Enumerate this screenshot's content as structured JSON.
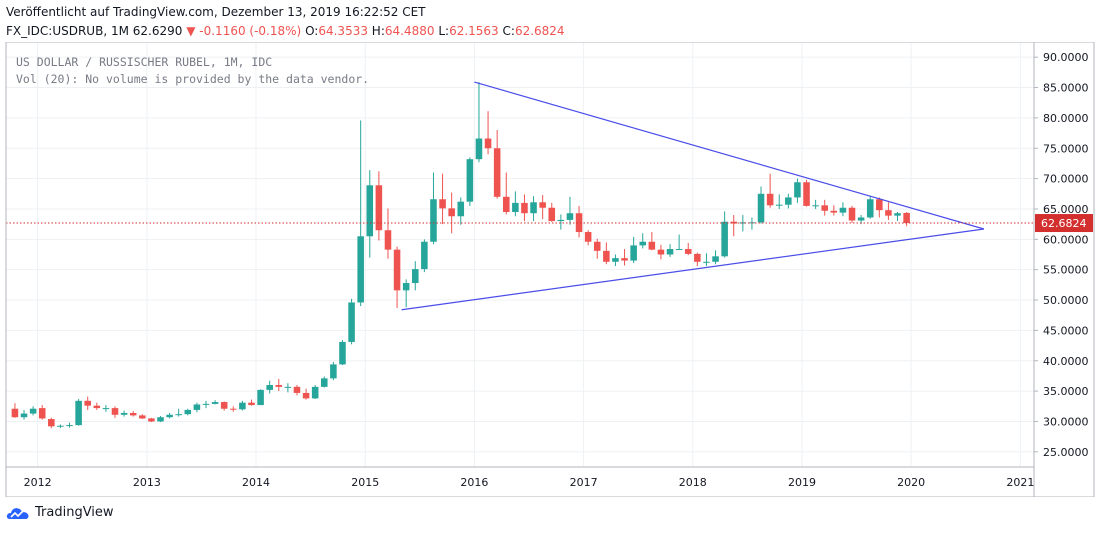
{
  "header": {
    "published": "Veröffentlicht auf TradingView.com, Dezember 13, 2019 16:22:52 CET",
    "symbol": "FX_IDC:USDRUB, 1M",
    "last": "62.6290",
    "arrow": "▼",
    "change": "-0.1160 (-0.18%)",
    "o_label": "O:",
    "o_value": "64.3533",
    "h_label": "H:",
    "h_value": "64.4880",
    "l_label": "L:",
    "l_value": "62.1563",
    "c_label": "C:",
    "c_value": "62.6824"
  },
  "legend": {
    "title": "US DOLLAR / RUSSISCHER RUBEL, 1M, IDC",
    "volume": "Vol (20): No volume is provided by the data vendor."
  },
  "footer": {
    "brand": "TradingView"
  },
  "colors": {
    "up": "#26a69a",
    "down": "#ef5350",
    "trendline": "#4a4de8",
    "price_line": "#d32f2f",
    "grid": "#eef1f4",
    "axis_text": "#131722"
  },
  "chart_data": {
    "type": "candlestick",
    "title": "US DOLLAR / RUSSISCHER RUBEL, 1M, IDC",
    "ylim": [
      22.5,
      92.5
    ],
    "xlim": [
      2011.71,
      2021.125
    ],
    "y_ticks": [
      "90.0000",
      "85.0000",
      "80.0000",
      "75.0000",
      "70.0000",
      "65.0000",
      "60.0000",
      "55.0000",
      "50.0000",
      "45.0000",
      "40.0000",
      "35.0000",
      "30.0000",
      "25.0000"
    ],
    "x_ticks": [
      "2012",
      "2013",
      "2014",
      "2015",
      "2016",
      "2017",
      "2018",
      "2019",
      "2020",
      "2021"
    ],
    "last_price_label": "62.6824",
    "last_price": 62.6824,
    "grid": true,
    "candles": [
      {
        "t": "2011-10",
        "o": 32.1,
        "h": 33.0,
        "l": 30.6,
        "c": 30.7
      },
      {
        "t": "2011-11",
        "o": 30.7,
        "h": 31.9,
        "l": 30.3,
        "c": 31.3
      },
      {
        "t": "2011-12",
        "o": 31.3,
        "h": 32.5,
        "l": 31.0,
        "c": 32.1
      },
      {
        "t": "2012-01",
        "o": 32.2,
        "h": 32.7,
        "l": 30.3,
        "c": 30.5
      },
      {
        "t": "2012-02",
        "o": 30.4,
        "h": 30.6,
        "l": 28.9,
        "c": 29.2
      },
      {
        "t": "2012-03",
        "o": 29.2,
        "h": 29.5,
        "l": 28.9,
        "c": 29.3
      },
      {
        "t": "2012-04",
        "o": 29.4,
        "h": 29.8,
        "l": 29.0,
        "c": 29.4
      },
      {
        "t": "2012-05",
        "o": 29.4,
        "h": 33.7,
        "l": 29.3,
        "c": 33.4
      },
      {
        "t": "2012-06",
        "o": 33.4,
        "h": 34.1,
        "l": 31.9,
        "c": 32.6
      },
      {
        "t": "2012-07",
        "o": 32.6,
        "h": 33.1,
        "l": 31.9,
        "c": 32.2
      },
      {
        "t": "2012-08",
        "o": 32.2,
        "h": 32.7,
        "l": 31.6,
        "c": 32.2
      },
      {
        "t": "2012-09",
        "o": 32.2,
        "h": 32.5,
        "l": 30.6,
        "c": 31.1
      },
      {
        "t": "2012-10",
        "o": 31.1,
        "h": 31.8,
        "l": 30.8,
        "c": 31.4
      },
      {
        "t": "2012-11",
        "o": 31.4,
        "h": 31.7,
        "l": 30.8,
        "c": 31.0
      },
      {
        "t": "2012-12",
        "o": 31.0,
        "h": 31.2,
        "l": 30.4,
        "c": 30.5
      },
      {
        "t": "2013-01",
        "o": 30.5,
        "h": 30.6,
        "l": 29.9,
        "c": 30.0
      },
      {
        "t": "2013-02",
        "o": 30.0,
        "h": 30.9,
        "l": 29.9,
        "c": 30.7
      },
      {
        "t": "2013-03",
        "o": 30.7,
        "h": 31.4,
        "l": 30.5,
        "c": 31.1
      },
      {
        "t": "2013-04",
        "o": 31.1,
        "h": 32.1,
        "l": 30.8,
        "c": 31.2
      },
      {
        "t": "2013-05",
        "o": 31.2,
        "h": 32.1,
        "l": 31.0,
        "c": 31.9
      },
      {
        "t": "2013-06",
        "o": 31.9,
        "h": 33.1,
        "l": 31.5,
        "c": 32.8
      },
      {
        "t": "2013-07",
        "o": 32.8,
        "h": 33.4,
        "l": 32.2,
        "c": 32.9
      },
      {
        "t": "2013-08",
        "o": 32.9,
        "h": 33.5,
        "l": 32.8,
        "c": 33.2
      },
      {
        "t": "2013-09",
        "o": 33.2,
        "h": 33.3,
        "l": 31.8,
        "c": 32.1
      },
      {
        "t": "2013-10",
        "o": 32.1,
        "h": 32.5,
        "l": 31.6,
        "c": 32.0
      },
      {
        "t": "2013-11",
        "o": 32.0,
        "h": 33.4,
        "l": 31.8,
        "c": 33.1
      },
      {
        "t": "2013-12",
        "o": 33.1,
        "h": 33.6,
        "l": 32.6,
        "c": 32.7
      },
      {
        "t": "2014-01",
        "o": 32.7,
        "h": 35.3,
        "l": 32.7,
        "c": 35.2
      },
      {
        "t": "2014-02",
        "o": 35.2,
        "h": 36.7,
        "l": 34.6,
        "c": 36.0
      },
      {
        "t": "2014-03",
        "o": 36.0,
        "h": 37.0,
        "l": 35.0,
        "c": 35.7
      },
      {
        "t": "2014-04",
        "o": 35.7,
        "h": 36.3,
        "l": 34.8,
        "c": 35.7
      },
      {
        "t": "2014-05",
        "o": 35.7,
        "h": 36.0,
        "l": 34.3,
        "c": 34.7
      },
      {
        "t": "2014-06",
        "o": 34.7,
        "h": 35.4,
        "l": 33.6,
        "c": 33.8
      },
      {
        "t": "2014-07",
        "o": 33.8,
        "h": 36.0,
        "l": 33.7,
        "c": 35.7
      },
      {
        "t": "2014-08",
        "o": 35.7,
        "h": 37.4,
        "l": 35.6,
        "c": 37.1
      },
      {
        "t": "2014-09",
        "o": 37.1,
        "h": 39.8,
        "l": 36.8,
        "c": 39.4
      },
      {
        "t": "2014-10",
        "o": 39.4,
        "h": 43.4,
        "l": 39.3,
        "c": 43.1
      },
      {
        "t": "2014-11",
        "o": 43.1,
        "h": 50.2,
        "l": 42.7,
        "c": 49.6
      },
      {
        "t": "2014-12",
        "o": 49.6,
        "h": 79.6,
        "l": 49.0,
        "c": 60.5
      },
      {
        "t": "2015-01",
        "o": 60.5,
        "h": 71.4,
        "l": 57.0,
        "c": 68.9
      },
      {
        "t": "2015-02",
        "o": 68.9,
        "h": 71.2,
        "l": 59.8,
        "c": 61.5
      },
      {
        "t": "2015-03",
        "o": 61.5,
        "h": 65.1,
        "l": 56.8,
        "c": 58.3
      },
      {
        "t": "2015-04",
        "o": 58.3,
        "h": 58.8,
        "l": 48.7,
        "c": 51.6
      },
      {
        "t": "2015-05",
        "o": 51.6,
        "h": 53.4,
        "l": 48.8,
        "c": 52.8
      },
      {
        "t": "2015-06",
        "o": 52.8,
        "h": 56.4,
        "l": 51.6,
        "c": 55.1
      },
      {
        "t": "2015-07",
        "o": 55.1,
        "h": 60.0,
        "l": 54.6,
        "c": 59.6
      },
      {
        "t": "2015-08",
        "o": 59.6,
        "h": 71.0,
        "l": 59.2,
        "c": 66.6
      },
      {
        "t": "2015-09",
        "o": 66.6,
        "h": 70.8,
        "l": 62.5,
        "c": 65.1
      },
      {
        "t": "2015-10",
        "o": 65.1,
        "h": 67.7,
        "l": 61.0,
        "c": 63.8
      },
      {
        "t": "2015-11",
        "o": 63.8,
        "h": 66.9,
        "l": 62.4,
        "c": 66.2
      },
      {
        "t": "2015-12",
        "o": 66.2,
        "h": 73.5,
        "l": 65.5,
        "c": 73.2
      },
      {
        "t": "2016-01",
        "o": 73.2,
        "h": 85.9,
        "l": 72.7,
        "c": 76.6
      },
      {
        "t": "2016-02",
        "o": 76.6,
        "h": 81.1,
        "l": 74.0,
        "c": 75.0
      },
      {
        "t": "2016-03",
        "o": 75.0,
        "h": 78.0,
        "l": 66.7,
        "c": 67.0
      },
      {
        "t": "2016-04",
        "o": 67.0,
        "h": 71.0,
        "l": 64.1,
        "c": 64.5
      },
      {
        "t": "2016-05",
        "o": 64.5,
        "h": 67.9,
        "l": 63.8,
        "c": 66.0
      },
      {
        "t": "2016-06",
        "o": 66.0,
        "h": 67.4,
        "l": 63.0,
        "c": 64.3
      },
      {
        "t": "2016-07",
        "o": 64.3,
        "h": 67.1,
        "l": 63.0,
        "c": 66.1
      },
      {
        "t": "2016-08",
        "o": 66.1,
        "h": 67.3,
        "l": 63.3,
        "c": 65.2
      },
      {
        "t": "2016-09",
        "o": 65.2,
        "h": 66.0,
        "l": 62.9,
        "c": 63.0
      },
      {
        "t": "2016-10",
        "o": 63.0,
        "h": 64.1,
        "l": 61.6,
        "c": 63.2
      },
      {
        "t": "2016-11",
        "o": 63.2,
        "h": 67.0,
        "l": 62.4,
        "c": 64.3
      },
      {
        "t": "2016-12",
        "o": 64.3,
        "h": 65.5,
        "l": 60.3,
        "c": 61.2
      },
      {
        "t": "2017-01",
        "o": 61.2,
        "h": 61.5,
        "l": 59.0,
        "c": 59.6
      },
      {
        "t": "2017-02",
        "o": 59.6,
        "h": 60.1,
        "l": 56.8,
        "c": 58.1
      },
      {
        "t": "2017-03",
        "o": 58.1,
        "h": 59.5,
        "l": 55.9,
        "c": 56.3
      },
      {
        "t": "2017-04",
        "o": 56.3,
        "h": 57.5,
        "l": 55.6,
        "c": 56.9
      },
      {
        "t": "2017-05",
        "o": 56.9,
        "h": 58.4,
        "l": 55.7,
        "c": 56.5
      },
      {
        "t": "2017-06",
        "o": 56.5,
        "h": 60.4,
        "l": 56.1,
        "c": 59.0
      },
      {
        "t": "2017-07",
        "o": 59.0,
        "h": 61.0,
        "l": 58.5,
        "c": 59.6
      },
      {
        "t": "2017-08",
        "o": 59.6,
        "h": 61.2,
        "l": 58.2,
        "c": 58.3
      },
      {
        "t": "2017-09",
        "o": 58.3,
        "h": 59.1,
        "l": 56.7,
        "c": 57.5
      },
      {
        "t": "2017-10",
        "o": 57.5,
        "h": 59.2,
        "l": 57.1,
        "c": 58.4
      },
      {
        "t": "2017-11",
        "o": 58.4,
        "h": 60.8,
        "l": 58.3,
        "c": 58.4
      },
      {
        "t": "2017-12",
        "o": 58.4,
        "h": 59.4,
        "l": 57.4,
        "c": 57.6
      },
      {
        "t": "2018-01",
        "o": 57.6,
        "h": 57.8,
        "l": 55.6,
        "c": 56.3
      },
      {
        "t": "2018-02",
        "o": 56.3,
        "h": 57.7,
        "l": 55.6,
        "c": 56.3
      },
      {
        "t": "2018-03",
        "o": 56.3,
        "h": 58.2,
        "l": 55.9,
        "c": 57.2
      },
      {
        "t": "2018-04",
        "o": 57.2,
        "h": 64.6,
        "l": 57.0,
        "c": 62.9
      },
      {
        "t": "2018-05",
        "o": 62.9,
        "h": 64.0,
        "l": 60.5,
        "c": 62.6
      },
      {
        "t": "2018-06",
        "o": 62.6,
        "h": 64.0,
        "l": 61.3,
        "c": 62.8
      },
      {
        "t": "2018-07",
        "o": 62.8,
        "h": 63.6,
        "l": 61.6,
        "c": 62.8
      },
      {
        "t": "2018-08",
        "o": 62.8,
        "h": 68.7,
        "l": 62.6,
        "c": 67.5
      },
      {
        "t": "2018-09",
        "o": 67.5,
        "h": 70.8,
        "l": 65.2,
        "c": 65.6
      },
      {
        "t": "2018-10",
        "o": 65.6,
        "h": 67.4,
        "l": 65.0,
        "c": 65.7
      },
      {
        "t": "2018-11",
        "o": 65.7,
        "h": 67.5,
        "l": 65.1,
        "c": 66.9
      },
      {
        "t": "2018-12",
        "o": 66.9,
        "h": 70.0,
        "l": 66.0,
        "c": 69.4
      },
      {
        "t": "2019-01",
        "o": 69.4,
        "h": 69.8,
        "l": 65.4,
        "c": 65.5
      },
      {
        "t": "2019-02",
        "o": 65.5,
        "h": 66.5,
        "l": 65.0,
        "c": 65.6
      },
      {
        "t": "2019-03",
        "o": 65.6,
        "h": 66.5,
        "l": 63.9,
        "c": 64.7
      },
      {
        "t": "2019-04",
        "o": 64.7,
        "h": 65.6,
        "l": 63.9,
        "c": 64.4
      },
      {
        "t": "2019-05",
        "o": 64.4,
        "h": 66.1,
        "l": 63.8,
        "c": 65.2
      },
      {
        "t": "2019-06",
        "o": 65.2,
        "h": 65.5,
        "l": 62.7,
        "c": 63.1
      },
      {
        "t": "2019-07",
        "o": 63.1,
        "h": 64.0,
        "l": 62.5,
        "c": 63.6
      },
      {
        "t": "2019-08",
        "o": 63.6,
        "h": 67.1,
        "l": 63.4,
        "c": 66.6
      },
      {
        "t": "2019-09",
        "o": 66.6,
        "h": 66.9,
        "l": 63.6,
        "c": 64.8
      },
      {
        "t": "2019-10",
        "o": 64.8,
        "h": 66.1,
        "l": 63.2,
        "c": 63.9
      },
      {
        "t": "2019-11",
        "o": 63.9,
        "h": 64.5,
        "l": 63.0,
        "c": 64.3
      },
      {
        "t": "2019-12",
        "o": 64.35,
        "h": 64.49,
        "l": 62.16,
        "c": 62.68
      }
    ],
    "trendlines": [
      {
        "from": [
          "2016-01",
          85.9
        ],
        "to": [
          "2020-09",
          61.7
        ]
      },
      {
        "from": [
          "2015-05",
          48.4
        ],
        "to": [
          "2020-09",
          61.7
        ]
      }
    ]
  }
}
